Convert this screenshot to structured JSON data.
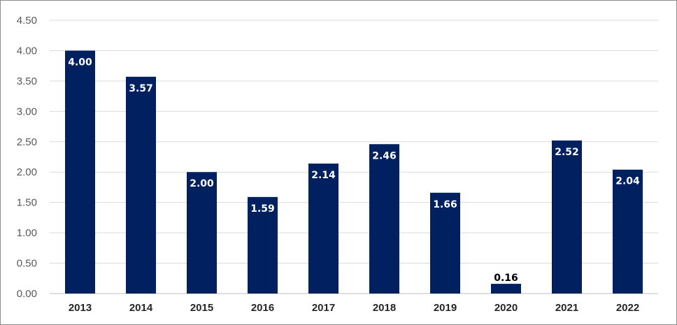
{
  "chart_data": {
    "type": "bar",
    "categories": [
      "2013",
      "2014",
      "2015",
      "2016",
      "2017",
      "2018",
      "2019",
      "2020",
      "2021",
      "2022"
    ],
    "values": [
      4.0,
      3.57,
      2.0,
      1.59,
      2.14,
      2.46,
      1.66,
      0.16,
      2.52,
      2.04
    ],
    "data_labels": [
      "4.00",
      "3.57",
      "2.00",
      "1.59",
      "2.14",
      "2.46",
      "1.66",
      "0.16",
      "2.52",
      "2.04"
    ],
    "yticks": [
      "0.00",
      "0.50",
      "1.00",
      "1.50",
      "2.00",
      "2.50",
      "3.00",
      "3.50",
      "4.00",
      "4.50"
    ],
    "ylim": [
      0,
      4.5
    ],
    "grid": true,
    "legend": "none",
    "colors": {
      "bar": "#002060",
      "label_inside": "#ffffff",
      "label_outside": "#000000",
      "grid": "#d9d9d9"
    }
  }
}
